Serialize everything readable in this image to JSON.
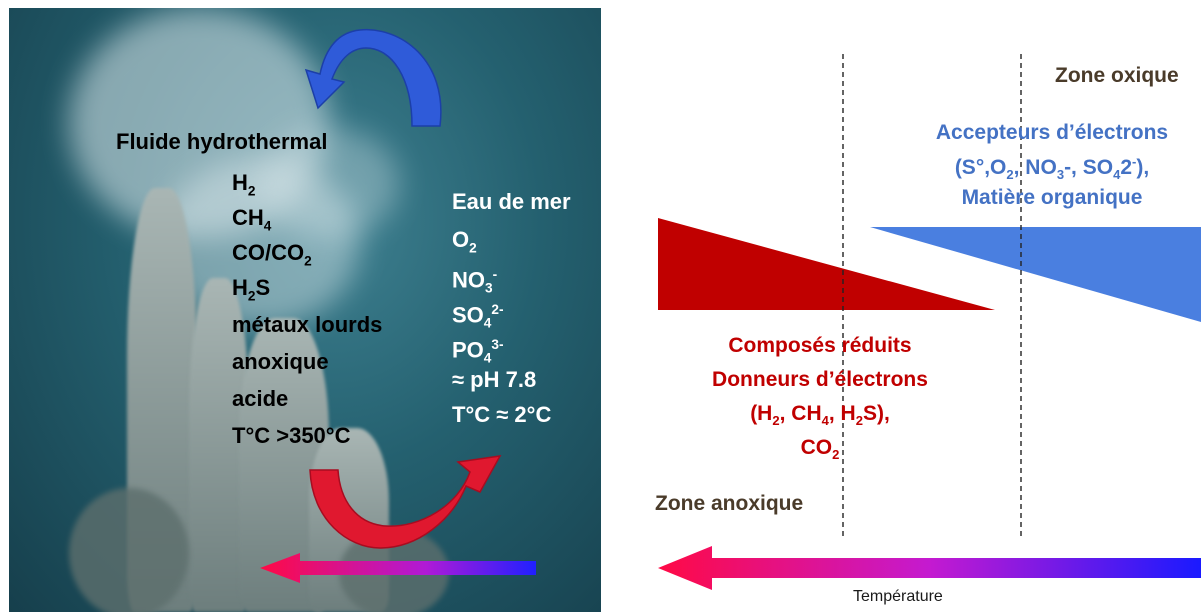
{
  "left": {
    "fluid_title": "Fluide hydrothermal",
    "fluid_items": [
      {
        "base": "H",
        "sub": "2",
        "rest": ""
      },
      {
        "base": "CH",
        "sub": "4",
        "rest": ""
      },
      {
        "base": "CO/CO",
        "sub": "2",
        "rest": ""
      },
      {
        "base": "H",
        "sub": "2",
        "rest": "S"
      },
      {
        "base": "métaux lourds",
        "sub": "",
        "rest": ""
      },
      {
        "base": "anoxique",
        "sub": "",
        "rest": ""
      },
      {
        "base": "acide",
        "sub": "",
        "rest": ""
      },
      {
        "base": "T°C >350°C",
        "sub": "",
        "rest": ""
      }
    ],
    "sea_title": "Eau de mer",
    "sea_items": [
      {
        "base": "O",
        "sub": "2",
        "sup": ""
      },
      {
        "base": "NO",
        "sub": "3",
        "sup": "-"
      },
      {
        "base": "SO",
        "sub": "4",
        "sup": "2-"
      },
      {
        "base": "PO",
        "sub": "4",
        "sup": "3-"
      },
      {
        "base": "≈ pH 7.8",
        "sub": "",
        "sup": ""
      },
      {
        "base": "T°C ≈ 2°C",
        "sub": "",
        "sup": ""
      }
    ]
  },
  "right": {
    "zone_oxique": "Zone oxique",
    "acceptors_line1": "Accepteurs d’électrons",
    "acceptors_line2": {
      "a": "(S°,O",
      "s1": "2",
      "b": ", NO",
      "s2": "3",
      "c": "-, SO",
      "s3": "4",
      "d": "2",
      "p4": "-",
      "e": "),"
    },
    "acceptors_line3": "Matière organique",
    "reduced_line1": "Composés réduits",
    "reduced_line2": "Donneurs d’électrons",
    "reduced_line3": {
      "a": "(H",
      "s1": "2",
      "b": ", CH",
      "s2": "4",
      "c": ", H",
      "s3": "2",
      "d": "S),"
    },
    "reduced_line4": {
      "a": "CO",
      "s1": "2"
    },
    "zone_anoxique": "Zone anoxique",
    "temperature_label": "Température"
  },
  "colors": {
    "red_wedge": "#c00000",
    "blue_wedge": "#4a7fe0",
    "acceptor_text": "#4472c4",
    "reduced_text": "#c00000"
  }
}
